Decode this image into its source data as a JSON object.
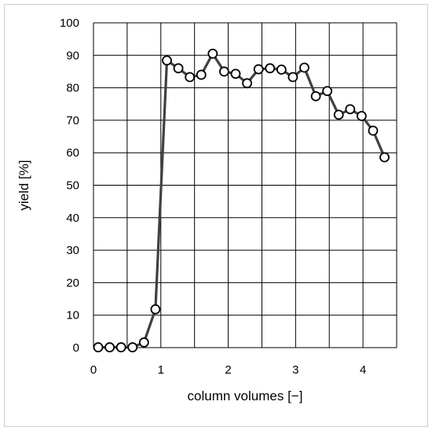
{
  "chart_data": {
    "type": "line",
    "xlabel": "column volumes [−]",
    "ylabel": "yield [%]",
    "xlim": [
      0,
      4.5
    ],
    "ylim": [
      0,
      100
    ],
    "x_ticks": [
      0,
      1,
      2,
      3,
      4
    ],
    "y_ticks": [
      0,
      10,
      20,
      30,
      40,
      50,
      60,
      70,
      80,
      90,
      100
    ],
    "x_minor_step": 0.5,
    "grid": true,
    "legend": "none",
    "colors": {
      "line": "#404040",
      "marker_edge": "#000000",
      "marker_fill": "#ffffff",
      "grid": "#000000"
    },
    "series": [
      {
        "x": [
          0.07,
          0.24,
          0.41,
          0.58,
          0.75,
          0.92,
          1.09,
          1.26,
          1.43,
          1.6,
          1.77,
          1.94,
          2.11,
          2.28,
          2.45,
          2.62,
          2.79,
          2.96,
          3.13,
          3.3,
          3.47,
          3.64,
          3.81,
          3.98,
          4.15,
          4.32
        ],
        "y": [
          0.1,
          0.1,
          0.1,
          0.1,
          1.6,
          11.8,
          88.4,
          86.0,
          83.3,
          84.0,
          90.5,
          85.0,
          84.3,
          81.4,
          85.7,
          86.0,
          85.6,
          83.3,
          86.2,
          77.4,
          79.0,
          71.7,
          73.4,
          71.3,
          66.8,
          58.6
        ]
      }
    ]
  }
}
